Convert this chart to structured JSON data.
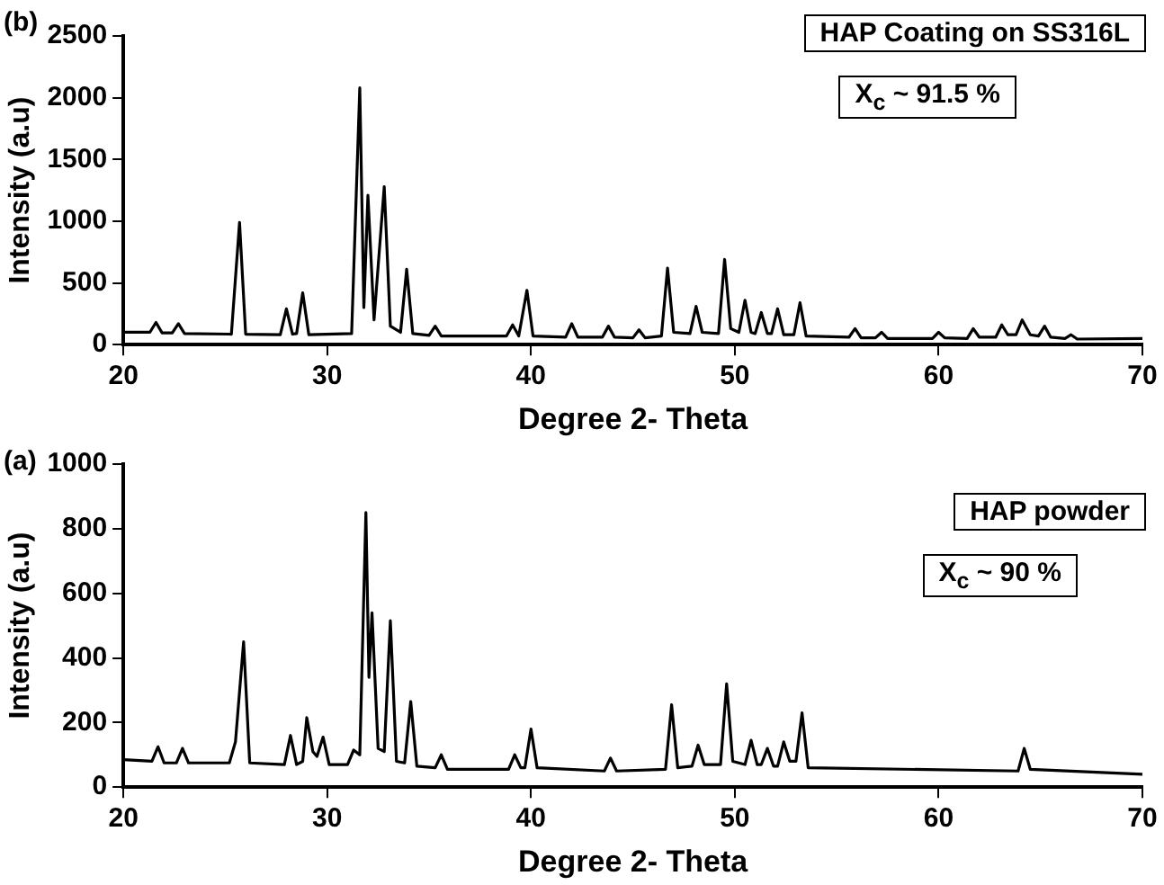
{
  "chart_data": [
    {
      "type": "line",
      "xlabel": "Degree 2- Theta",
      "ylabel": "Intensity (a.u)",
      "annotations": [
        "(b)",
        "HAP Coating on SS316L",
        "X$_{c}$ ~ 91.5 %"
      ],
      "xlim": [
        20,
        70
      ],
      "xticks": [
        20,
        30,
        40,
        50,
        60,
        70
      ],
      "ylim": [
        0,
        2500
      ],
      "yticks": [
        0,
        500,
        1000,
        1500,
        2000,
        2500
      ],
      "grid": false,
      "legend": false,
      "marker": "none",
      "line_style": "solid",
      "series": [
        {
          "color": "#000000",
          "x": [
            20,
            21.3,
            21.6,
            21.9,
            22.4,
            22.7,
            23.0,
            25.3,
            25.7,
            26.0,
            27.7,
            28.0,
            28.3,
            28.5,
            28.8,
            29.1,
            31.2,
            31.6,
            31.8,
            32.0,
            32.3,
            32.8,
            33.1,
            33.6,
            33.9,
            34.2,
            35.0,
            35.3,
            35.6,
            38.8,
            39.1,
            39.4,
            39.8,
            40.1,
            41.7,
            42.0,
            42.3,
            43.5,
            43.8,
            44.1,
            45.0,
            45.3,
            45.6,
            46.4,
            46.7,
            47.0,
            47.8,
            48.1,
            48.4,
            49.2,
            49.5,
            49.8,
            50.2,
            50.5,
            50.8,
            51.0,
            51.3,
            51.6,
            51.8,
            52.1,
            52.4,
            52.9,
            53.2,
            53.5,
            55.6,
            55.9,
            56.2,
            56.9,
            57.2,
            57.5,
            59.7,
            60.0,
            60.3,
            61.4,
            61.7,
            62.0,
            62.8,
            63.1,
            63.4,
            63.8,
            64.1,
            64.5,
            64.9,
            65.2,
            65.5,
            66.2,
            66.5,
            66.8,
            70
          ],
          "values": [
            100,
            100,
            180,
            95,
            95,
            170,
            90,
            85,
            990,
            85,
            80,
            290,
            85,
            90,
            420,
            80,
            90,
            2080,
            300,
            1210,
            200,
            1280,
            150,
            100,
            610,
            90,
            75,
            150,
            70,
            70,
            160,
            70,
            440,
            70,
            60,
            170,
            60,
            60,
            150,
            60,
            55,
            120,
            55,
            70,
            620,
            100,
            90,
            310,
            100,
            90,
            690,
            130,
            100,
            360,
            100,
            90,
            260,
            90,
            90,
            290,
            80,
            80,
            340,
            70,
            60,
            130,
            55,
            55,
            100,
            50,
            50,
            100,
            55,
            50,
            130,
            60,
            60,
            160,
            80,
            80,
            200,
            80,
            70,
            150,
            60,
            50,
            80,
            45,
            50
          ]
        }
      ]
    },
    {
      "type": "line",
      "xlabel": "Degree 2- Theta",
      "ylabel": "Intensity (a.u)",
      "annotations": [
        "(a)",
        "HAP powder",
        "X$_{c}$ ~ 90 %"
      ],
      "xlim": [
        20,
        70
      ],
      "xticks": [
        20,
        30,
        40,
        50,
        60,
        70
      ],
      "ylim": [
        0,
        1000
      ],
      "yticks": [
        0,
        200,
        400,
        600,
        800,
        1000
      ],
      "grid": false,
      "legend": false,
      "marker": "none",
      "line_style": "solid",
      "series": [
        {
          "color": "#000000",
          "x": [
            20,
            21.4,
            21.7,
            22.0,
            22.6,
            22.9,
            23.2,
            25.2,
            25.5,
            25.9,
            26.2,
            27.9,
            28.2,
            28.5,
            28.8,
            29.0,
            29.3,
            29.5,
            29.8,
            30.1,
            31.0,
            31.3,
            31.6,
            31.9,
            32.05,
            32.2,
            32.5,
            32.8,
            33.1,
            33.4,
            33.8,
            34.1,
            34.4,
            35.3,
            35.6,
            35.9,
            38.9,
            39.2,
            39.5,
            39.7,
            40.0,
            40.3,
            43.6,
            43.9,
            44.2,
            46.6,
            46.9,
            47.2,
            47.9,
            48.2,
            48.5,
            49.3,
            49.6,
            49.9,
            50.5,
            50.8,
            51.1,
            51.3,
            51.6,
            51.9,
            52.1,
            52.4,
            52.7,
            53.0,
            53.3,
            53.6,
            63.9,
            64.2,
            64.5,
            70
          ],
          "values": [
            85,
            80,
            125,
            75,
            75,
            120,
            75,
            75,
            140,
            450,
            75,
            70,
            160,
            70,
            80,
            215,
            110,
            95,
            155,
            70,
            70,
            115,
            100,
            850,
            340,
            540,
            120,
            110,
            515,
            80,
            75,
            265,
            65,
            60,
            100,
            55,
            55,
            100,
            60,
            60,
            180,
            60,
            50,
            90,
            50,
            55,
            255,
            60,
            65,
            130,
            70,
            70,
            320,
            80,
            70,
            145,
            70,
            70,
            120,
            65,
            65,
            140,
            80,
            80,
            230,
            60,
            50,
            120,
            55,
            40
          ]
        }
      ]
    }
  ]
}
